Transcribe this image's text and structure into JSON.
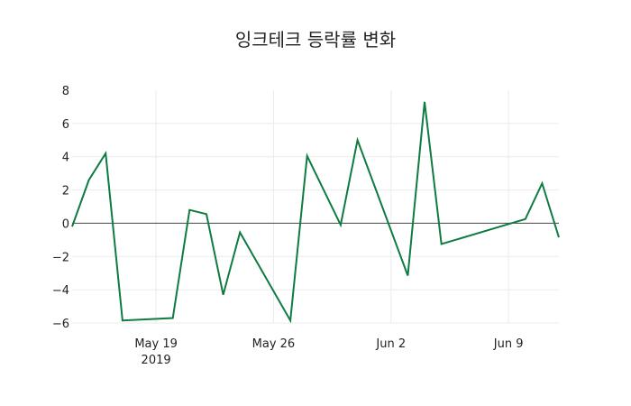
{
  "chart_data": {
    "type": "line",
    "title": "잉크테크 등락률 변화",
    "xlabel": "",
    "ylabel": "",
    "x": [
      "2019-05-14",
      "2019-05-15",
      "2019-05-16",
      "2019-05-17",
      "2019-05-20",
      "2019-05-21",
      "2019-05-22",
      "2019-05-23",
      "2019-05-24",
      "2019-05-27",
      "2019-05-28",
      "2019-05-30",
      "2019-05-31",
      "2019-06-03",
      "2019-06-04",
      "2019-06-05",
      "2019-06-10",
      "2019-06-11",
      "2019-06-12"
    ],
    "series": [
      {
        "name": "등락률",
        "color": "#0e7c41",
        "values": [
          -0.2,
          2.6,
          4.2,
          -5.85,
          -5.7,
          0.8,
          0.55,
          -4.3,
          -0.55,
          -5.85,
          4.05,
          -0.1,
          5.0,
          -3.15,
          7.3,
          -1.25,
          0.25,
          2.4,
          -0.85
        ]
      }
    ],
    "ylim": [
      -6,
      8
    ],
    "yticks": [
      -6,
      -4,
      -2,
      0,
      2,
      4,
      6,
      8
    ],
    "ytick_labels": [
      "−6",
      "−4",
      "−2",
      "0",
      "2",
      "4",
      "6",
      "8"
    ],
    "xticks": [
      {
        "date": "2019-05-19",
        "label": "May 19",
        "sublabel": "2019"
      },
      {
        "date": "2019-05-26",
        "label": "May 26",
        "sublabel": ""
      },
      {
        "date": "2019-06-02",
        "label": "Jun 2",
        "sublabel": ""
      },
      {
        "date": "2019-06-09",
        "label": "Jun 9",
        "sublabel": ""
      }
    ],
    "grid": true,
    "zeroline": true
  }
}
